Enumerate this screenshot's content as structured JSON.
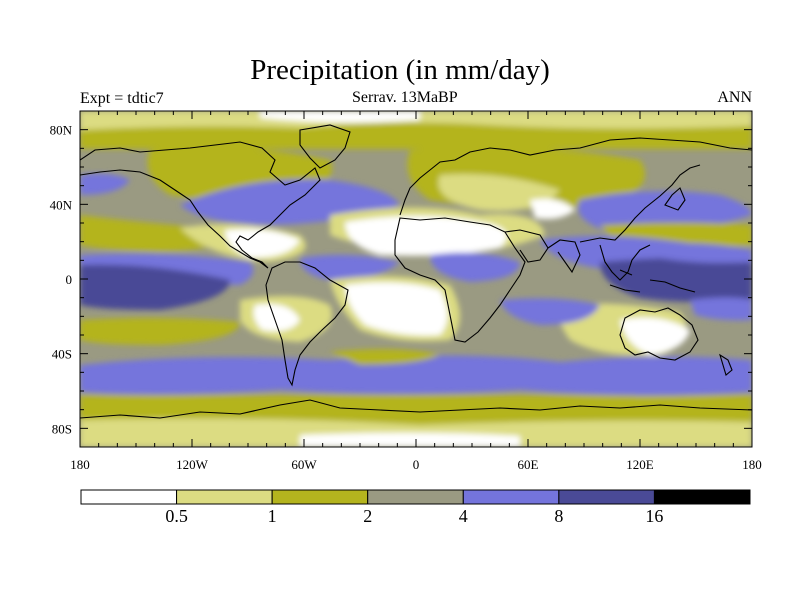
{
  "title": "Precipitation (in mm/day)",
  "experiment": "Expt = tdtic7",
  "subtitle": "Serrav.   13MaBP",
  "season": "ANN",
  "map": {
    "projection": "cylindrical equidistant",
    "lon_range": [
      -180,
      180
    ],
    "lat_range": [
      -90,
      90
    ],
    "lon_tick_labels": [
      "180",
      "120W",
      "60W",
      "0",
      "60E",
      "120E",
      "180"
    ],
    "lat_tick_labels": [
      "80N",
      "40N",
      "0",
      "40S",
      "80S"
    ],
    "lon_ticks_deg": [
      -180,
      -120,
      -60,
      0,
      60,
      120,
      180
    ],
    "lat_ticks_deg": [
      80,
      40,
      0,
      -40,
      -80
    ],
    "coastline_color": "#000000"
  },
  "colorbar": {
    "levels": [
      "0.5",
      "1",
      "2",
      "4",
      "8",
      "16"
    ],
    "colors": [
      "#ffffff",
      "#dcdc82",
      "#b4b41e",
      "#9a9a82",
      "#7474dc",
      "#4a4a96",
      "#000000"
    ]
  },
  "chart_data": {
    "type": "heatmap",
    "title": "Precipitation (in mm/day)",
    "variable": "precipitation",
    "units": "mm/day",
    "contour_levels": [
      0.5,
      1,
      2,
      4,
      8,
      16
    ]
  }
}
